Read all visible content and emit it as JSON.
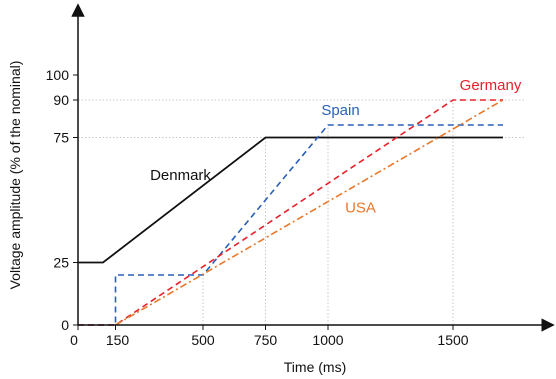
{
  "chart_data": {
    "type": "line",
    "xlabel": "Time (ms)",
    "ylabel": "Voltage amplitude (% of the nominal)",
    "xlim": [
      0,
      1700
    ],
    "ylim": [
      0,
      110
    ],
    "x_ticks": [
      0,
      150,
      500,
      750,
      1000,
      1500
    ],
    "y_ticks": [
      0,
      25,
      75,
      90,
      100
    ],
    "gridlines": {
      "horizontal": [
        75,
        90
      ],
      "vertical": [
        500,
        750,
        1000,
        1500
      ]
    },
    "series": [
      {
        "name": "Denmark",
        "color": "#111111",
        "dash": "solid",
        "points": [
          [
            0,
            25
          ],
          [
            100,
            25
          ],
          [
            750,
            75
          ],
          [
            1700,
            75
          ]
        ]
      },
      {
        "name": "Spain",
        "color": "#2a5fb8",
        "dash": "dashed",
        "points": [
          [
            0,
            0
          ],
          [
            150,
            0
          ],
          [
            150,
            20
          ],
          [
            500,
            20
          ],
          [
            1000,
            80
          ],
          [
            1700,
            80
          ]
        ]
      },
      {
        "name": "Germany",
        "color": "#e8202a",
        "dash": "dashed",
        "points": [
          [
            0,
            0
          ],
          [
            150,
            0
          ],
          [
            1500,
            90
          ],
          [
            1700,
            90
          ]
        ]
      },
      {
        "name": "USA",
        "color": "#e8782a",
        "dash": "dashdot",
        "points": [
          [
            150,
            0
          ],
          [
            1700,
            90
          ]
        ]
      }
    ],
    "labels": [
      {
        "text": "Denmark",
        "x": 410,
        "y": 58,
        "series": "Denmark"
      },
      {
        "text": "Spain",
        "x": 1050,
        "y": 84,
        "series": "Spain"
      },
      {
        "text": "Germany",
        "x": 1650,
        "y": 94,
        "series": "Germany"
      },
      {
        "text": "USA",
        "x": 1130,
        "y": 45,
        "series": "USA"
      }
    ]
  }
}
